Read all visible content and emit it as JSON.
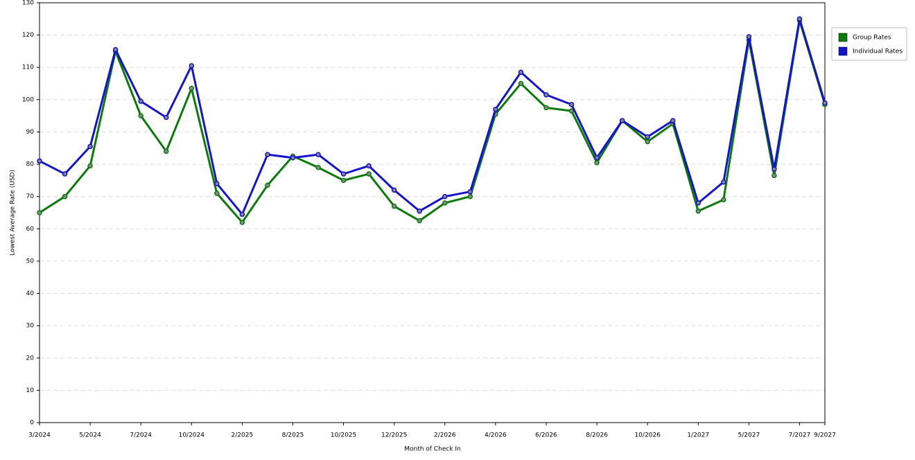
{
  "chart_data": {
    "type": "line",
    "x_label": "Month of Check In",
    "y_label": "Lowest Average Rate (USD)",
    "categories": [
      "3/2024",
      null,
      "5/2024",
      null,
      "7/2024",
      null,
      "10/2024",
      null,
      "2/2025",
      null,
      "8/2025",
      null,
      "10/2025",
      null,
      "12/2025",
      null,
      "2/2026",
      null,
      "4/2026",
      null,
      "6/2026",
      null,
      "8/2026",
      null,
      "10/2026",
      null,
      "1/2027",
      null,
      "5/2027",
      null,
      "7/2027",
      "9/2027"
    ],
    "series": [
      {
        "name": "Group Rates",
        "color": "#0b7a0b",
        "values": [
          65,
          70,
          79.5,
          115,
          95,
          84,
          103.5,
          71,
          62,
          73.5,
          82.5,
          79,
          75,
          77,
          67,
          62.5,
          68,
          70,
          95.5,
          105,
          97.5,
          96.5,
          80.5,
          93.5,
          87,
          92.5,
          65.5,
          69,
          118.5,
          76.5,
          124.5,
          98.5
        ]
      },
      {
        "name": "Individual Rates",
        "color": "#1414cc",
        "values": [
          81,
          77,
          85.5,
          115.5,
          99.5,
          94.5,
          110.5,
          74,
          64.5,
          83,
          82,
          83,
          77,
          79.5,
          72,
          65.5,
          70,
          71.5,
          97,
          108.5,
          101.5,
          98.5,
          82,
          93.5,
          88.5,
          93.5,
          68,
          74.5,
          119.5,
          78.5,
          125,
          99
        ]
      }
    ],
    "ylim": [
      0,
      130
    ],
    "yticks": [
      0,
      10,
      20,
      30,
      40,
      50,
      60,
      70,
      80,
      90,
      100,
      110,
      120,
      130
    ],
    "grid": true,
    "legend": "right"
  }
}
